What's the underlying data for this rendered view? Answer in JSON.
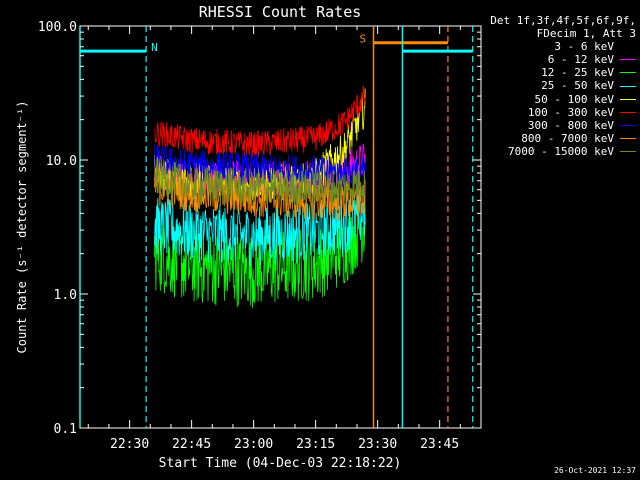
{
  "chart_data": {
    "type": "line",
    "title": "RHESSI Count Rates",
    "xlabel": "Start Time (04-Dec-03 22:18:22)",
    "ylabel": "Count Rate (s⁻¹ detector segment⁻¹)",
    "yscale": "log",
    "ylim": [
      0.1,
      100
    ],
    "xlim": [
      "22:18",
      "23:55"
    ],
    "y_ticks": [
      "100.0",
      "10.0",
      "1.0",
      "0.1"
    ],
    "x_ticks": [
      "22:30",
      "22:45",
      "23:00",
      "23:15",
      "23:30",
      "23:45"
    ],
    "grid": false,
    "legend_position": "right",
    "legend_header": [
      "Det 1f,3f,4f,5f,6f,9f,",
      "FDecim 1, Att 3"
    ],
    "series": [
      {
        "name": "3 - 6 keV",
        "color": "#000000",
        "x": [
          "22:36",
          "22:45",
          "23:00",
          "23:15",
          "23:22",
          "23:27"
        ],
        "values": [
          1.5,
          1.3,
          1.2,
          1.4,
          2.0,
          3.0
        ]
      },
      {
        "name": "6 - 12 keV",
        "color": "#ff00ff",
        "x": [
          "22:36",
          "22:45",
          "23:00",
          "23:15",
          "23:22",
          "23:27"
        ],
        "values": [
          8.0,
          7.5,
          7.0,
          7.5,
          8.5,
          10.0
        ]
      },
      {
        "name": "12 - 25 keV",
        "color": "#00ff00",
        "x": [
          "22:36",
          "22:45",
          "23:00",
          "23:15",
          "23:22",
          "23:27"
        ],
        "values": [
          2.0,
          1.6,
          1.5,
          1.7,
          2.2,
          3.5
        ]
      },
      {
        "name": "25 - 50 keV",
        "color": "#00ffff",
        "x": [
          "22:36",
          "22:45",
          "23:00",
          "23:15",
          "23:22",
          "23:27"
        ],
        "values": [
          3.2,
          2.9,
          2.7,
          2.9,
          3.3,
          4.0
        ]
      },
      {
        "name": "50 - 100 keV",
        "color": "#ffff00",
        "x": [
          "22:36",
          "22:45",
          "23:00",
          "23:15",
          "23:22",
          "23:27"
        ],
        "values": [
          8.0,
          7.0,
          6.5,
          7.5,
          12.0,
          25.0
        ]
      },
      {
        "name": "100 - 300 keV",
        "color": "#ff0000",
        "x": [
          "22:36",
          "22:45",
          "23:00",
          "23:15",
          "23:22",
          "23:27"
        ],
        "values": [
          16.0,
          14.0,
          13.0,
          14.5,
          19.0,
          30.0
        ]
      },
      {
        "name": "300 - 800 keV",
        "color": "#0000ff",
        "x": [
          "22:36",
          "22:45",
          "23:00",
          "23:15",
          "23:22",
          "23:27"
        ],
        "values": [
          10.0,
          9.0,
          8.5,
          8.2,
          8.0,
          8.0
        ]
      },
      {
        "name": "800 - 7000 keV",
        "color": "#ff8c00",
        "x": [
          "22:36",
          "22:45",
          "23:00",
          "23:15",
          "23:22",
          "23:27"
        ],
        "values": [
          6.5,
          5.8,
          5.3,
          5.0,
          5.0,
          5.0
        ]
      },
      {
        "name": "7000 - 15000 keV",
        "color": "#6b8e23",
        "x": [
          "22:36",
          "22:45",
          "23:00",
          "23:15",
          "23:22",
          "23:27"
        ],
        "values": [
          7.5,
          6.5,
          6.2,
          6.2,
          6.3,
          7.0
        ]
      }
    ],
    "annotations": [
      {
        "label": "N",
        "color": "#00ffff",
        "bar": {
          "x_start": "22:18",
          "x_end": "22:34",
          "y": 65
        },
        "solid_line": "22:18",
        "dashed_line": "22:34"
      },
      {
        "label": "S",
        "color": "#ff8c00",
        "bar": {
          "x_start": "23:29",
          "x_end": "23:47",
          "y": 75
        },
        "solid_line": "23:29",
        "dashed_line": "23:47"
      },
      {
        "label": "",
        "color": "#00ffff",
        "bar": {
          "x_start": "23:36",
          "x_end": "23:53",
          "y": 65
        },
        "solid_line": "23:36",
        "dashed_line": "23:53"
      }
    ]
  },
  "timestamp": "26-Oct-2021 12:37"
}
